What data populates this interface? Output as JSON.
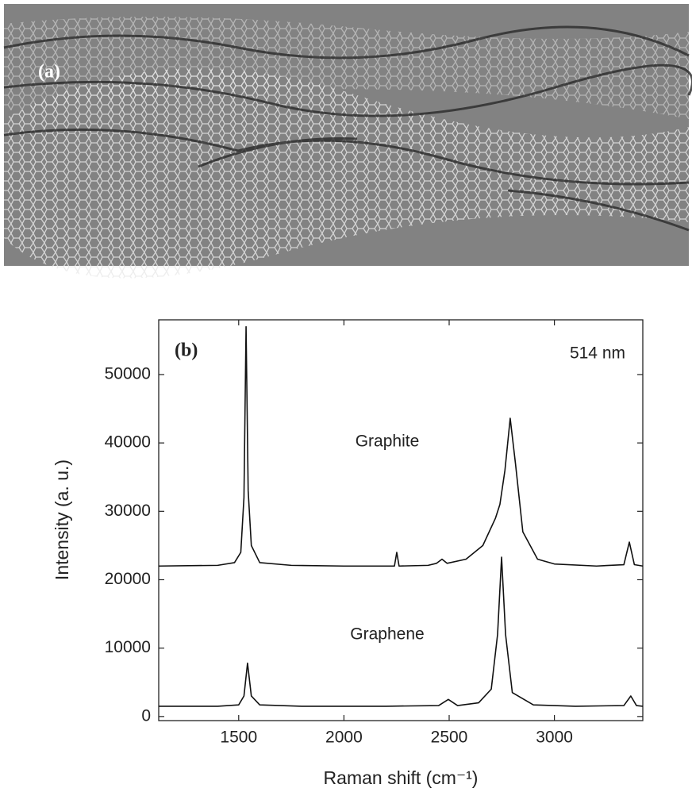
{
  "panel_a_label": "(a)",
  "chart_data": {
    "type": "line",
    "panel_label": "(b)",
    "x_label": "Raman shift (cm⁻¹)",
    "y_label": "Intensity (a. u.)",
    "annotations": [
      "514 nm",
      "Graphite",
      "Graphene"
    ],
    "xlim": [
      1120,
      3420
    ],
    "xticks": [
      1500,
      2000,
      2500,
      3000
    ],
    "ylim": [
      -600,
      58000
    ],
    "yticks": [
      0,
      10000,
      20000,
      30000,
      40000,
      50000
    ],
    "series": [
      {
        "name": "Graphite",
        "color": "#111111",
        "x": [
          1120,
          1400,
          1480,
          1510,
          1525,
          1535,
          1545,
          1560,
          1600,
          1750,
          2000,
          2240,
          2251,
          2262,
          2400,
          2440,
          2466,
          2490,
          2580,
          2660,
          2720,
          2741,
          2765,
          2790,
          2815,
          2850,
          2920,
          3000,
          3200,
          3330,
          3356,
          3380,
          3420
        ],
        "values": [
          22000,
          22100,
          22500,
          24000,
          32000,
          57000,
          33000,
          25000,
          22500,
          22100,
          22000,
          22000,
          24000,
          22000,
          22100,
          22400,
          23000,
          22400,
          23000,
          25000,
          29000,
          31000,
          36000,
          43600,
          37000,
          27000,
          23000,
          22300,
          22000,
          22200,
          25500,
          22200,
          22000
        ]
      },
      {
        "name": "Graphene",
        "color": "#111111",
        "x": [
          1120,
          1400,
          1500,
          1525,
          1542,
          1560,
          1600,
          1800,
          2200,
          2450,
          2496,
          2540,
          2640,
          2700,
          2730,
          2749,
          2768,
          2800,
          2900,
          3100,
          3330,
          3363,
          3390,
          3420
        ],
        "values": [
          1500,
          1500,
          1700,
          3000,
          7800,
          3000,
          1700,
          1500,
          1500,
          1600,
          2500,
          1600,
          2000,
          4000,
          12000,
          23300,
          12000,
          3500,
          1700,
          1500,
          1600,
          3000,
          1600,
          1500
        ]
      }
    ]
  }
}
